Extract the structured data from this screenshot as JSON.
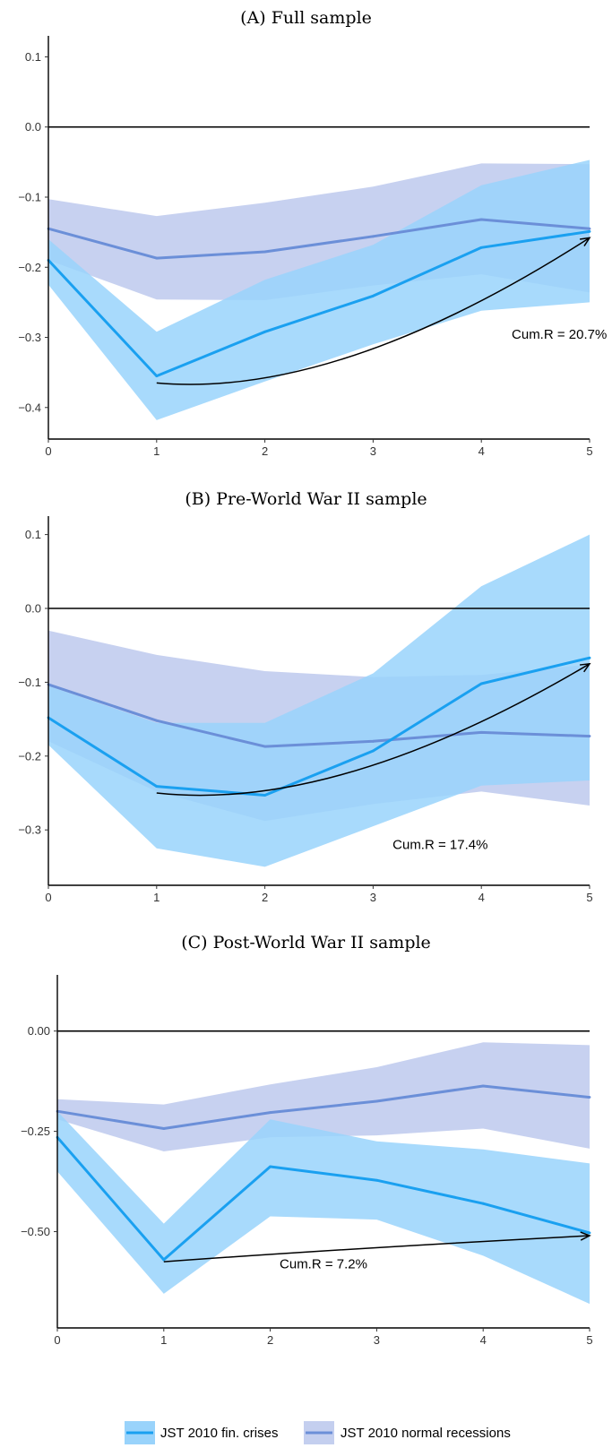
{
  "legend": {
    "items": [
      {
        "label": "JST 2010 fin. crises",
        "color": "#1aa0f0",
        "band_color": "#99d3fb"
      },
      {
        "label": "JST 2010 normal recessions",
        "color": "#6b8fd8",
        "band_color": "#c4cfef"
      }
    ]
  },
  "chart_data": [
    {
      "type": "line",
      "title": "(A) Full sample",
      "x": [
        0,
        1,
        2,
        3,
        4,
        5
      ],
      "x_tick_labels": [
        "0",
        "1",
        "2",
        "3",
        "4",
        "5"
      ],
      "xlim": [
        0,
        5
      ],
      "ylim": [
        -0.445,
        0.13
      ],
      "y_ticks": [
        0.1,
        0.0,
        -0.1,
        -0.2,
        -0.3,
        -0.4
      ],
      "y_tick_labels": [
        "0.1",
        "0.0",
        "−0.1",
        "−0.2",
        "−0.3",
        "−0.4"
      ],
      "reference_line_y": 0,
      "series": [
        {
          "name": "JST 2010 fin. crises",
          "values": [
            -0.19,
            -0.355,
            -0.292,
            -0.241,
            -0.172,
            -0.149
          ],
          "lower": [
            -0.225,
            -0.418,
            -0.363,
            -0.31,
            -0.262,
            -0.25
          ],
          "upper": [
            -0.16,
            -0.292,
            -0.218,
            -0.168,
            -0.083,
            -0.047
          ]
        },
        {
          "name": "JST 2010 normal recessions",
          "values": [
            -0.145,
            -0.187,
            -0.178,
            -0.156,
            -0.132,
            -0.145
          ],
          "lower": [
            -0.19,
            -0.246,
            -0.247,
            -0.226,
            -0.21,
            -0.236
          ],
          "upper": [
            -0.103,
            -0.127,
            -0.108,
            -0.085,
            -0.052,
            -0.053
          ]
        }
      ],
      "annotation": {
        "text": "Cum.R = 20.7%",
        "arrow_from": [
          1,
          -0.365
        ],
        "arrow_to": [
          5,
          -0.158
        ],
        "text_at": [
          4.72,
          -0.302
        ]
      }
    },
    {
      "type": "line",
      "title": "(B) Pre-World War II sample",
      "x": [
        0,
        1,
        2,
        3,
        4,
        5
      ],
      "x_tick_labels": [
        "0",
        "1",
        "2",
        "3",
        "4",
        "5"
      ],
      "xlim": [
        0,
        5
      ],
      "ylim": [
        -0.375,
        0.125
      ],
      "y_ticks": [
        0.1,
        0.0,
        -0.1,
        -0.2,
        -0.3
      ],
      "y_tick_labels": [
        "0.1",
        "0.0",
        "−0.1",
        "−0.2",
        "−0.3"
      ],
      "reference_line_y": 0,
      "series": [
        {
          "name": "JST 2010 fin. crises",
          "values": [
            -0.148,
            -0.241,
            -0.253,
            -0.193,
            -0.102,
            -0.067
          ],
          "lower": [
            -0.185,
            -0.325,
            -0.35,
            -0.295,
            -0.24,
            -0.233
          ],
          "upper": [
            -0.105,
            -0.155,
            -0.155,
            -0.088,
            0.03,
            0.1
          ]
        },
        {
          "name": "JST 2010 normal recessions",
          "values": [
            -0.103,
            -0.152,
            -0.187,
            -0.18,
            -0.168,
            -0.173
          ],
          "lower": [
            -0.18,
            -0.248,
            -0.288,
            -0.265,
            -0.248,
            -0.267
          ],
          "upper": [
            -0.03,
            -0.063,
            -0.085,
            -0.093,
            -0.09,
            -0.076
          ]
        }
      ],
      "annotation": {
        "text": "Cum.R = 17.4%",
        "arrow_from": [
          1,
          -0.25
        ],
        "arrow_to": [
          5,
          -0.075
        ],
        "text_at": [
          3.62,
          -0.326
        ]
      }
    },
    {
      "type": "line",
      "title": "(C) Post-World War II sample",
      "x": [
        0,
        1,
        2,
        3,
        4,
        5
      ],
      "x_tick_labels": [
        "0",
        "1",
        "2",
        "3",
        "4",
        "5"
      ],
      "xlim": [
        0,
        5
      ],
      "ylim": [
        -0.74,
        0.14
      ],
      "y_ticks": [
        0.0,
        -0.25,
        -0.5
      ],
      "y_tick_labels": [
        "0.00",
        "−0.25",
        "−0.50"
      ],
      "reference_line_y": 0,
      "series": [
        {
          "name": "JST 2010 fin. crises",
          "values": [
            -0.265,
            -0.57,
            -0.338,
            -0.372,
            -0.43,
            -0.503
          ],
          "lower": [
            -0.35,
            -0.655,
            -0.462,
            -0.47,
            -0.56,
            -0.68
          ],
          "upper": [
            -0.2,
            -0.48,
            -0.22,
            -0.275,
            -0.295,
            -0.33
          ]
        },
        {
          "name": "JST 2010 normal recessions",
          "values": [
            -0.2,
            -0.243,
            -0.203,
            -0.175,
            -0.137,
            -0.165
          ],
          "lower": [
            -0.22,
            -0.3,
            -0.265,
            -0.26,
            -0.243,
            -0.293
          ],
          "upper": [
            -0.17,
            -0.183,
            -0.133,
            -0.09,
            -0.028,
            -0.035
          ]
        }
      ],
      "annotation": {
        "text": "Cum.R = 7.2%",
        "arrow_from": [
          1,
          -0.575
        ],
        "arrow_to": [
          5,
          -0.51
        ],
        "text_at": [
          2.5,
          -0.592
        ]
      }
    }
  ]
}
